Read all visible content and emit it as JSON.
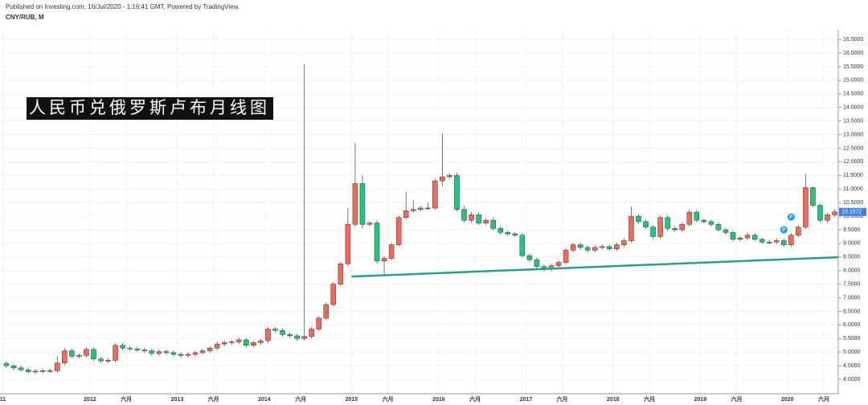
{
  "chart_data": {
    "type": "candlestick",
    "header": "Published on Investing.com, 16/Jul/2020 - 1:16:41 GMT, Powered by TradingView.",
    "symbol": "CNY/RUB, M",
    "title": "人民币兑俄罗斯卢布月线图",
    "x": [
      "2011-01",
      "2011-02",
      "2011-03",
      "2011-04",
      "2011-05",
      "2011-06",
      "2011-07",
      "2011-08",
      "2011-09",
      "2011-10",
      "2011-11",
      "2011-12",
      "2012-01",
      "2012-02",
      "2012-03",
      "2012-04",
      "2012-05",
      "2012-06",
      "2012-07",
      "2012-08",
      "2012-09",
      "2012-10",
      "2012-11",
      "2012-12",
      "2013-01",
      "2013-02",
      "2013-03",
      "2013-04",
      "2013-05",
      "2013-06",
      "2013-07",
      "2013-08",
      "2013-09",
      "2013-10",
      "2013-11",
      "2013-12",
      "2014-01",
      "2014-02",
      "2014-03",
      "2014-04",
      "2014-05",
      "2014-06",
      "2014-07",
      "2014-08",
      "2014-09",
      "2014-10",
      "2014-11",
      "2014-12",
      "2015-01",
      "2015-02",
      "2015-03",
      "2015-04",
      "2015-05",
      "2015-06",
      "2015-07",
      "2015-08",
      "2015-09",
      "2015-10",
      "2015-11",
      "2015-12",
      "2016-01",
      "2016-02",
      "2016-03",
      "2016-04",
      "2016-05",
      "2016-06",
      "2016-07",
      "2016-08",
      "2016-09",
      "2016-10",
      "2016-11",
      "2016-12",
      "2017-01",
      "2017-02",
      "2017-03",
      "2017-04",
      "2017-05",
      "2017-06",
      "2017-07",
      "2017-08",
      "2017-09",
      "2017-10",
      "2017-11",
      "2017-12",
      "2018-01",
      "2018-02",
      "2018-03",
      "2018-04",
      "2018-05",
      "2018-06",
      "2018-07",
      "2018-08",
      "2018-09",
      "2018-10",
      "2018-11",
      "2018-12",
      "2019-01",
      "2019-02",
      "2019-03",
      "2019-04",
      "2019-05",
      "2019-06",
      "2019-07",
      "2019-08",
      "2019-09",
      "2019-10",
      "2019-11",
      "2019-12",
      "2020-01",
      "2020-02",
      "2020-03",
      "2020-04",
      "2020-05",
      "2020-06",
      "2020-07"
    ],
    "series": {
      "up_color": "#f26a5b",
      "down_color": "#22c47f",
      "wick_color": "#555555",
      "open": [
        4.58,
        4.5,
        4.42,
        4.35,
        4.28,
        4.3,
        4.32,
        4.32,
        4.6,
        5.05,
        4.85,
        4.88,
        5.1,
        4.75,
        4.68,
        4.7,
        5.25,
        5.15,
        5.12,
        5.08,
        5.05,
        4.95,
        5.02,
        4.98,
        4.92,
        4.88,
        4.92,
        4.98,
        5.05,
        5.15,
        5.3,
        5.35,
        5.38,
        5.45,
        5.25,
        5.35,
        5.42,
        5.85,
        5.8,
        5.65,
        5.6,
        5.5,
        5.58,
        5.85,
        6.25,
        6.75,
        7.5,
        8.25,
        9.7,
        11.2,
        9.7,
        9.75,
        8.35,
        8.45,
        8.95,
        9.95,
        10.2,
        10.25,
        10.3,
        10.3,
        11.3,
        11.45,
        11.5,
        10.25,
        9.85,
        10.05,
        9.75,
        9.85,
        9.55,
        9.4,
        9.35,
        9.3,
        8.55,
        8.4,
        8.15,
        8.05,
        8.18,
        8.3,
        8.75,
        8.95,
        8.85,
        8.75,
        8.85,
        8.88,
        8.8,
        8.95,
        9.1,
        10.0,
        9.8,
        9.6,
        9.25,
        9.95,
        9.55,
        9.5,
        9.7,
        10.15,
        9.85,
        9.8,
        9.7,
        9.5,
        9.4,
        9.15,
        9.2,
        9.3,
        9.15,
        9.05,
        9.05,
        9.1,
        8.95,
        9.3,
        9.6,
        11.05,
        10.4,
        9.85,
        10.05
      ],
      "high": [
        4.66,
        4.58,
        4.5,
        4.43,
        4.38,
        4.4,
        4.4,
        4.85,
        5.15,
        5.13,
        4.96,
        5.18,
        5.18,
        4.83,
        4.78,
        5.33,
        5.33,
        5.23,
        5.2,
        5.16,
        5.13,
        5.1,
        5.1,
        5.06,
        5.0,
        5.0,
        5.06,
        5.13,
        5.23,
        5.38,
        5.43,
        5.46,
        5.53,
        5.53,
        5.43,
        5.5,
        5.93,
        5.93,
        5.88,
        5.73,
        5.68,
        15.6,
        5.93,
        6.33,
        6.83,
        7.58,
        8.33,
        10.3,
        12.7,
        11.5,
        9.83,
        9.85,
        8.53,
        9.03,
        10.03,
        10.9,
        10.6,
        10.4,
        10.5,
        11.4,
        13.05,
        11.58,
        11.6,
        10.4,
        10.15,
        10.15,
        9.93,
        9.95,
        9.63,
        9.48,
        9.43,
        9.38,
        8.63,
        8.48,
        8.23,
        8.26,
        8.38,
        8.83,
        9.03,
        9.03,
        8.93,
        8.93,
        8.96,
        8.96,
        9.03,
        9.18,
        10.35,
        10.08,
        9.88,
        9.68,
        10.03,
        10.03,
        9.63,
        9.78,
        10.23,
        10.23,
        9.93,
        9.88,
        9.78,
        9.58,
        9.48,
        9.28,
        9.38,
        9.38,
        9.23,
        9.13,
        9.18,
        9.18,
        9.38,
        9.68,
        11.55,
        11.1,
        10.48,
        10.13,
        10.25
      ],
      "low": [
        4.42,
        4.34,
        4.27,
        4.2,
        4.2,
        4.22,
        4.24,
        4.24,
        4.52,
        4.77,
        4.77,
        4.8,
        4.67,
        4.6,
        4.6,
        4.62,
        5.07,
        5.04,
        5.0,
        4.97,
        4.87,
        4.87,
        4.9,
        4.84,
        4.8,
        4.8,
        4.84,
        4.9,
        4.97,
        5.07,
        5.22,
        5.27,
        5.3,
        5.17,
        5.17,
        5.27,
        5.34,
        5.72,
        5.57,
        5.52,
        5.42,
        5.42,
        5.5,
        5.77,
        6.17,
        6.67,
        7.42,
        8.17,
        9.6,
        9.55,
        9.62,
        8.25,
        7.85,
        8.37,
        8.87,
        9.87,
        10.12,
        10.17,
        10.22,
        10.22,
        11.1,
        11.37,
        10.17,
        9.77,
        9.77,
        9.67,
        9.67,
        9.47,
        9.32,
        9.27,
        9.22,
        8.47,
        8.32,
        8.07,
        7.97,
        7.97,
        8.1,
        8.22,
        8.67,
        8.77,
        8.67,
        8.67,
        8.77,
        8.72,
        8.72,
        8.87,
        9.02,
        9.72,
        9.52,
        9.17,
        9.17,
        9.47,
        9.42,
        9.42,
        9.62,
        9.77,
        9.72,
        9.62,
        9.42,
        9.32,
        9.07,
        9.07,
        9.12,
        9.07,
        8.97,
        8.97,
        8.97,
        8.87,
        8.87,
        9.22,
        9.52,
        10.32,
        9.77,
        9.77,
        9.97
      ],
      "close": [
        4.5,
        4.42,
        4.35,
        4.28,
        4.3,
        4.32,
        4.32,
        4.6,
        5.05,
        4.85,
        4.88,
        5.1,
        4.75,
        4.68,
        4.7,
        5.25,
        5.15,
        5.12,
        5.08,
        5.05,
        4.95,
        5.02,
        4.98,
        4.92,
        4.88,
        4.92,
        4.98,
        5.05,
        5.15,
        5.3,
        5.35,
        5.38,
        5.45,
        5.25,
        5.35,
        5.42,
        5.85,
        5.8,
        5.65,
        5.6,
        5.5,
        5.58,
        5.85,
        6.25,
        6.75,
        7.5,
        8.25,
        9.7,
        11.2,
        9.7,
        9.75,
        8.35,
        8.45,
        8.95,
        9.95,
        10.2,
        10.25,
        10.3,
        10.3,
        11.3,
        11.45,
        11.5,
        10.25,
        9.85,
        10.05,
        9.75,
        9.85,
        9.55,
        9.4,
        9.35,
        9.3,
        8.55,
        8.4,
        8.15,
        8.05,
        8.18,
        8.3,
        8.75,
        8.95,
        8.85,
        8.75,
        8.85,
        8.88,
        8.8,
        8.95,
        9.1,
        10.0,
        9.8,
        9.6,
        9.25,
        9.95,
        9.55,
        9.5,
        9.7,
        10.15,
        9.85,
        9.8,
        9.7,
        9.5,
        9.4,
        9.15,
        9.2,
        9.3,
        9.15,
        9.05,
        9.05,
        9.1,
        8.95,
        9.3,
        9.6,
        11.05,
        10.4,
        9.85,
        10.05,
        10.1572
      ],
      "last_value_label": "10.1572",
      "last_color": "#3f7fe6"
    },
    "trendline": {
      "x": [
        "2015-01",
        "2020-08"
      ],
      "values": [
        7.78,
        8.49
      ],
      "color": "#2a9d8f"
    },
    "markers": [
      {
        "x": "2019-12",
        "value": 9.5,
        "label": "P"
      },
      {
        "x": "2020-01",
        "value": 9.97,
        "label": "P"
      }
    ],
    "marker_color": "#2196f3",
    "ylim": [
      3.47,
      16.77
    ],
    "yticks": [
      {
        "value": 4,
        "label": "4.0000"
      },
      {
        "value": 4.5,
        "label": "4.5000"
      },
      {
        "value": 5,
        "label": "5.0000"
      },
      {
        "value": 5.5,
        "label": "5.5000"
      },
      {
        "value": 6,
        "label": "6.0000"
      },
      {
        "value": 6.5,
        "label": "6.5000"
      },
      {
        "value": 7,
        "label": "7.0000"
      },
      {
        "value": 7.5,
        "label": "7.5000"
      },
      {
        "value": 8,
        "label": "8.0000"
      },
      {
        "value": 8.5,
        "label": "8.5000"
      },
      {
        "value": 9,
        "label": "9.0000"
      },
      {
        "value": 9.5,
        "label": "9.5000"
      },
      {
        "value": 10,
        "label": "10.0000"
      },
      {
        "value": 10.5,
        "label": "10.5000"
      },
      {
        "value": 11,
        "label": "11.0000"
      },
      {
        "value": 11.5,
        "label": "11.5000"
      },
      {
        "value": 12,
        "label": "12.0000"
      },
      {
        "value": 12.5,
        "label": "12.5000"
      },
      {
        "value": 13,
        "label": "13.0000"
      },
      {
        "value": 13.5,
        "label": "13.5000"
      },
      {
        "value": 14,
        "label": "14.0000"
      },
      {
        "value": 14.5,
        "label": "14.5000"
      },
      {
        "value": 15,
        "label": "15.0000"
      },
      {
        "value": 15.5,
        "label": "15.5000"
      },
      {
        "value": 16,
        "label": "16.0000"
      },
      {
        "value": 16.5,
        "label": "16.5000"
      }
    ],
    "xticks": [
      {
        "value": "2011-01",
        "label": "11"
      },
      {
        "value": "2012-01",
        "label": "2012"
      },
      {
        "value": "2012-06",
        "label": "六月"
      },
      {
        "value": "2013-01",
        "label": "2013"
      },
      {
        "value": "2013-06",
        "label": "六月"
      },
      {
        "value": "2014-01",
        "label": "2014"
      },
      {
        "value": "2014-06",
        "label": "六月"
      },
      {
        "value": "2015-01",
        "label": "2015"
      },
      {
        "value": "2015-06",
        "label": "六月"
      },
      {
        "value": "2016-01",
        "label": "2016"
      },
      {
        "value": "2016-06",
        "label": "六月"
      },
      {
        "value": "2017-01",
        "label": "2017"
      },
      {
        "value": "2017-06",
        "label": "六月"
      },
      {
        "value": "2018-01",
        "label": "2018"
      },
      {
        "value": "2018-06",
        "label": "六月"
      },
      {
        "value": "2019-01",
        "label": "2019"
      },
      {
        "value": "2019-06",
        "label": "六月"
      },
      {
        "value": "2020-01",
        "label": "2020"
      },
      {
        "value": "2020-06",
        "label": "六月"
      }
    ],
    "grid": true
  }
}
